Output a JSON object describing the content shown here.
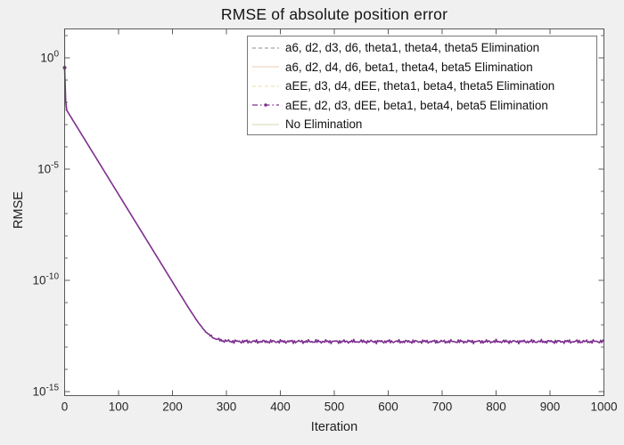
{
  "chart_data": {
    "type": "line",
    "title": "RMSE of absolute position error",
    "xlabel": "Iteration",
    "ylabel": "RMSE",
    "yscale": "log",
    "xlim": [
      0,
      1000
    ],
    "ylim_exponents": [
      1.3,
      -15.2
    ],
    "x_ticks": [
      0,
      100,
      200,
      300,
      400,
      500,
      600,
      700,
      800,
      900,
      1000
    ],
    "y_tick_exponents": [
      0,
      -5,
      -10,
      -15
    ],
    "y_minor_tick_exponents": [
      1,
      -1,
      -2,
      -3,
      -4,
      -6,
      -7,
      -8,
      -9,
      -11,
      -12,
      -13,
      -14
    ],
    "grid": "off",
    "legend_position": "top-right-inside",
    "series": [
      {
        "name": "a6, d2, d3, d6, theta1, theta4, theta5 Elimination",
        "color": "#98a4b5",
        "style": "dashed"
      },
      {
        "name": "a6, d2, d4, d6, beta1, theta4, beta5 Elimination",
        "color": "#f0d6c4",
        "style": "solid"
      },
      {
        "name": "aEE, d3, d4, dEE, theta1, beta4, theta5 Elimination",
        "color": "#ece3b3",
        "style": "dashed"
      },
      {
        "name": "aEE, d2, d3, dEE, beta1, beta4, beta5 Elimination",
        "color": "#7e2f8e",
        "style": "dash-dot-marker"
      },
      {
        "name": "No Elimination",
        "color": "#dde1c0",
        "style": "solid"
      }
    ],
    "visible_curve": {
      "series_name": "aEE, d2, d3, dEE, beta1, beta4, beta5 Elimination",
      "color": "#7e2f8e",
      "start_point_log10": [
        0,
        -0.44
      ],
      "drop_point_log10": [
        2.5,
        -2.3
      ],
      "elbow_x": 268,
      "floor_log10": -12.75,
      "floor_noise_decades": 0.09,
      "x_end": 1000,
      "marker": "dot-at-start"
    },
    "initial_spike": {
      "x": 0,
      "top_exponent": 1.3,
      "bottom_exponent": -2.4,
      "color": "#c3ccb2"
    },
    "colors": {
      "figure_background": "#f0f0f0",
      "plot_background": "#ffffff",
      "axes_line": "#4a4a4a",
      "tick_label": "#262626",
      "legend_border": "#777777",
      "main_line": "#7e2f8e"
    }
  }
}
